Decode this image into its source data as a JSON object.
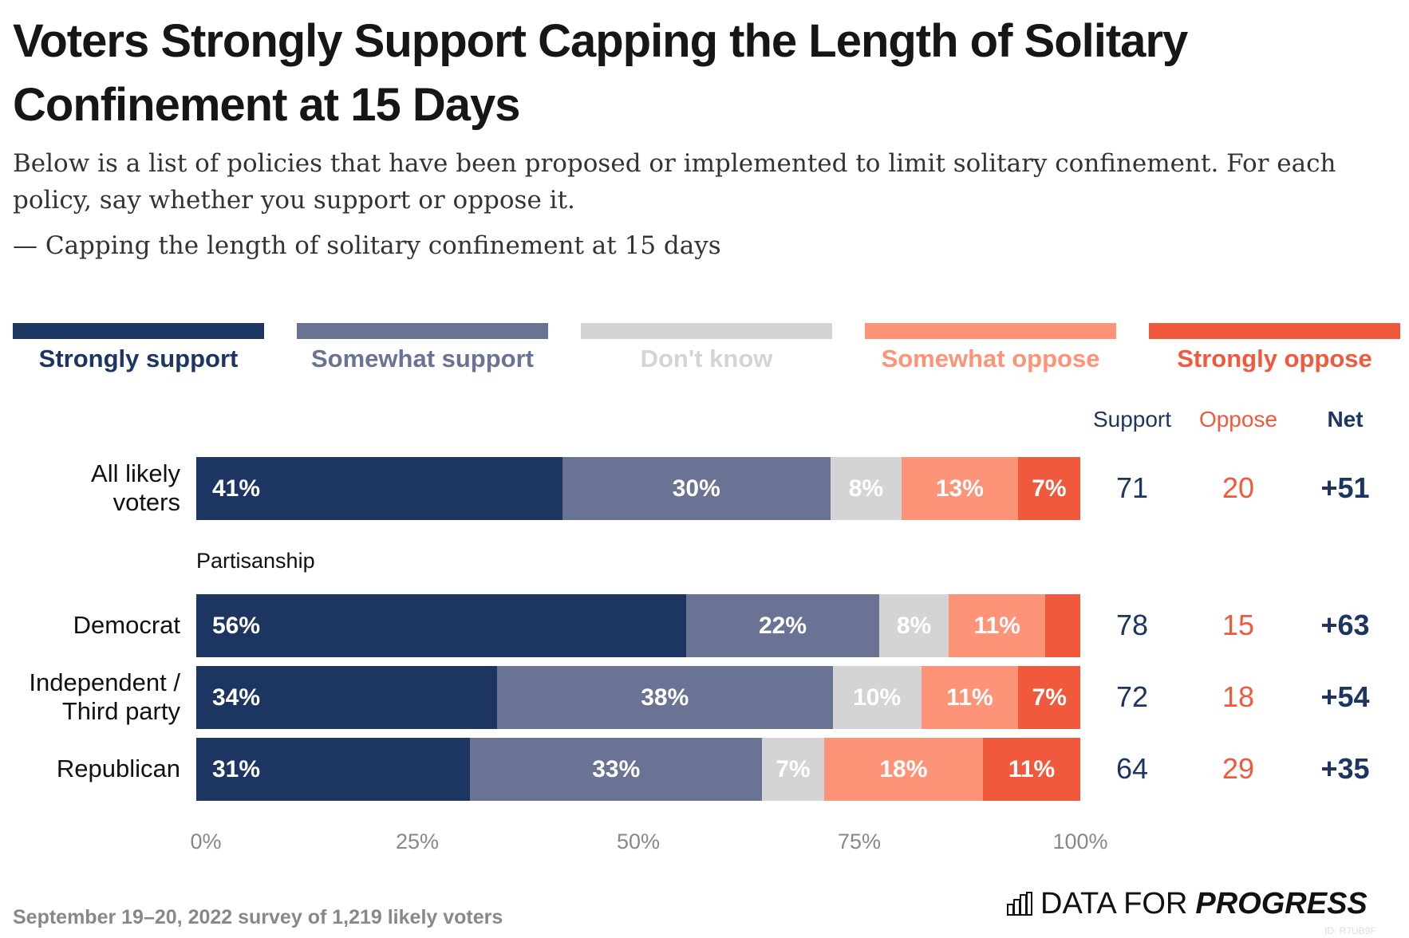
{
  "title": "Voters Strongly Support Capping the Length of Solitary Confinement at 15 Days",
  "subtitle": "Below is a list of policies that have been proposed or implemented to limit solitary confinement. For each policy, say whether you support or oppose it.",
  "question": "— Capping the length of solitary confinement at 15 days",
  "footer": "September 19–20, 2022 survey of 1,219 likely voters",
  "logo": {
    "text_light": "DATA FOR",
    "text_bold": "PROGRESS",
    "icon": "bar-chart-icon",
    "id_text": "ID: R7UB9F"
  },
  "colors": {
    "strongly_support": "#1c3661",
    "somewhat_support": "#6a7394",
    "dont_know": "#d4d4d6",
    "somewhat_oppose": "#fd9377",
    "strongly_oppose": "#f1593d"
  },
  "chart_data": {
    "type": "bar",
    "orientation": "horizontal-stacked",
    "legend_placement": "top",
    "legend": [
      "Strongly support",
      "Somewhat support",
      "Don't know",
      "Somewhat oppose",
      "Strongly oppose"
    ],
    "xlim": [
      0,
      100
    ],
    "xticks": [
      "0%",
      "25%",
      "50%",
      "75%",
      "100%"
    ],
    "group_label": "Partisanship",
    "summary_headers": {
      "support": "Support",
      "oppose": "Oppose",
      "net": "Net"
    },
    "rows": [
      {
        "label": "All likely voters",
        "values": [
          41,
          30,
          8,
          13,
          7
        ],
        "labels": [
          "41%",
          "30%",
          "8%",
          "13%",
          "7%"
        ],
        "support": "71",
        "oppose": "20",
        "net": "+51"
      },
      {
        "label": "Democrat",
        "values": [
          56,
          22,
          8,
          11,
          4
        ],
        "labels": [
          "56%",
          "22%",
          "8%",
          "11%",
          ""
        ],
        "support": "78",
        "oppose": "15",
        "net": "+63"
      },
      {
        "label": "Independent / Third party",
        "values": [
          34,
          38,
          10,
          11,
          7
        ],
        "labels": [
          "34%",
          "38%",
          "10%",
          "11%",
          "7%"
        ],
        "support": "72",
        "oppose": "18",
        "net": "+54"
      },
      {
        "label": "Republican",
        "values": [
          31,
          33,
          7,
          18,
          11
        ],
        "labels": [
          "31%",
          "33%",
          "7%",
          "18%",
          "11%"
        ],
        "support": "64",
        "oppose": "29",
        "net": "+35"
      }
    ]
  }
}
